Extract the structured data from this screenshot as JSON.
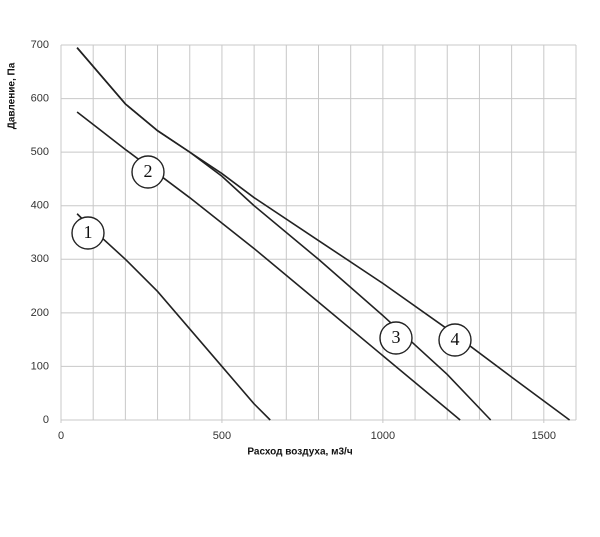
{
  "chart_data": {
    "type": "line",
    "ylabel": "Давление, Па",
    "xlabel": "Расход воздуха, м3/ч",
    "xlim": [
      0,
      1600
    ],
    "xticks": [
      0,
      500,
      1000,
      1500
    ],
    "ylim": [
      0,
      700
    ],
    "yticks": [
      0,
      100,
      200,
      300,
      400,
      500,
      600,
      700
    ],
    "grid": true,
    "series": [
      {
        "name": "1",
        "color": "#222222",
        "x": [
          50,
          100,
          200,
          300,
          400,
          500,
          600,
          650
        ],
        "values": [
          385,
          355,
          300,
          240,
          170,
          100,
          30,
          0
        ]
      },
      {
        "name": "2",
        "color": "#222222",
        "x": [
          50,
          200,
          400,
          600,
          800,
          1000,
          1200,
          1240
        ],
        "values": [
          575,
          505,
          415,
          320,
          220,
          120,
          20,
          0
        ]
      },
      {
        "name": "3",
        "color": "#222222",
        "x": [
          50,
          200,
          300,
          400,
          500,
          600,
          800,
          1000,
          1200,
          1335
        ],
        "values": [
          695,
          590,
          540,
          500,
          455,
          400,
          300,
          195,
          85,
          0
        ]
      },
      {
        "name": "4",
        "color": "#222222",
        "x": [
          50,
          200,
          300,
          400,
          500,
          600,
          800,
          1000,
          1200,
          1400,
          1580
        ],
        "values": [
          695,
          590,
          540,
          500,
          460,
          415,
          335,
          255,
          170,
          80,
          0
        ]
      }
    ]
  }
}
